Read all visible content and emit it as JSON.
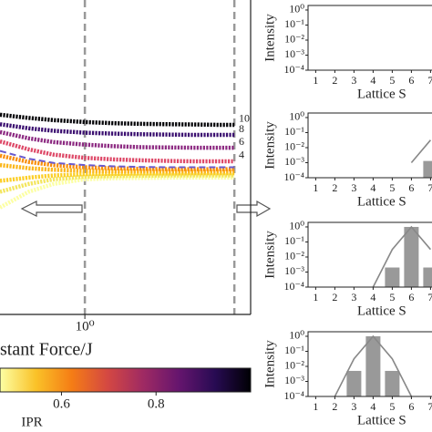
{
  "chart_data": [
    {
      "type": "line",
      "xlabel": "stant Force/J",
      "xscale": "log",
      "xlim": [
        0.25,
        15
      ],
      "xticks": [
        {
          "value": 1,
          "label": "10⁰"
        }
      ],
      "ylim": [
        0,
        10
      ],
      "vlines": [
        1,
        11.5
      ],
      "x": [
        0.25,
        0.4,
        0.6,
        1,
        1.6,
        2.5,
        4,
        6,
        9,
        11.5
      ],
      "series": [
        {
          "color": "#fcffa4",
          "values": [
            3.4,
            3.9,
            4.15,
            4.3,
            4.33,
            4.34,
            4.35,
            4.35,
            4.35,
            4.35
          ]
        },
        {
          "color": "#f3e55d",
          "values": [
            3.9,
            4.15,
            4.3,
            4.38,
            4.4,
            4.41,
            4.42,
            4.42,
            4.42,
            4.42
          ]
        },
        {
          "color": "#fcce25",
          "values": [
            4.25,
            4.35,
            4.42,
            4.46,
            4.47,
            4.48,
            4.48,
            4.49,
            4.49,
            4.49
          ]
        },
        {
          "color": "#fbb61a",
          "values": [
            4.75,
            4.65,
            4.6,
            4.57,
            4.56,
            4.56,
            4.55,
            4.55,
            4.55,
            4.55
          ]
        },
        {
          "color": "#f98e09",
          "values": [
            5.05,
            4.85,
            4.75,
            4.68,
            4.65,
            4.63,
            4.62,
            4.62,
            4.62,
            4.62
          ]
        },
        {
          "color": "#6a5acd",
          "dashed": true,
          "values": [
            5.2,
            4.95,
            4.82,
            4.75,
            4.71,
            4.69,
            4.68,
            4.68,
            4.68,
            4.68
          ]
        },
        {
          "name": "4",
          "color": "#de4968",
          "values": [
            5.5,
            5.25,
            5.08,
            4.98,
            4.93,
            4.9,
            4.88,
            4.87,
            4.87,
            4.87
          ]
        },
        {
          "name": "6",
          "color": "#8c2981",
          "values": [
            5.8,
            5.6,
            5.48,
            5.4,
            5.35,
            5.32,
            5.31,
            5.3,
            5.3,
            5.3
          ]
        },
        {
          "name": "8",
          "color": "#3b0f70",
          "values": [
            6.05,
            5.92,
            5.84,
            5.78,
            5.75,
            5.73,
            5.72,
            5.71,
            5.71,
            5.71
          ]
        },
        {
          "name": "10",
          "color": "#000004",
          "values": [
            6.35,
            6.25,
            6.18,
            6.12,
            6.08,
            6.06,
            6.05,
            6.04,
            6.03,
            6.03
          ]
        }
      ],
      "colorbar": {
        "label": "IPR",
        "colormap": "inferno",
        "lim": [
          0.47,
          1.0
        ],
        "ticks": [
          0.6,
          0.8
        ]
      }
    },
    {
      "type": "bar",
      "ylabel": "Intensity",
      "xlabel": "Lattice S",
      "yscale": "log",
      "categories": [
        1,
        2,
        3,
        4,
        5,
        6,
        7
      ],
      "xlim": [
        0.6,
        7.7
      ],
      "values": [
        null,
        null,
        null,
        null,
        null,
        null,
        null
      ],
      "ylim": [
        0.0001,
        2
      ],
      "yticks": [
        {
          "value": 1,
          "label": "10⁰"
        },
        {
          "value": 0.1,
          "label": "10⁻¹"
        },
        {
          "value": 0.01,
          "label": "10⁻²"
        },
        {
          "value": 0.001,
          "label": "10⁻³"
        },
        {
          "value": 0.0001,
          "label": "10⁻⁴"
        }
      ],
      "color": "#999999"
    },
    {
      "type": "bar",
      "ylabel": "Intensity",
      "xlabel": "Lattice S",
      "yscale": "log",
      "categories": [
        1,
        2,
        3,
        4,
        5,
        6,
        7
      ],
      "xlim": [
        0.6,
        7.7
      ],
      "values": [
        null,
        null,
        null,
        null,
        null,
        null,
        0.0013
      ],
      "fit": [
        null,
        null,
        null,
        null,
        null,
        0.001,
        0.0316
      ],
      "ylim": [
        0.0001,
        2
      ],
      "yticks": [
        {
          "value": 1,
          "label": "10⁰"
        },
        {
          "value": 0.1,
          "label": "10⁻¹"
        },
        {
          "value": 0.01,
          "label": "10⁻²"
        },
        {
          "value": 0.001,
          "label": "10⁻³"
        },
        {
          "value": 0.0001,
          "label": "10⁻⁴"
        }
      ],
      "color": "#999999"
    },
    {
      "type": "bar",
      "ylabel": "Intensity",
      "xlabel": "Lattice S",
      "yscale": "log",
      "categories": [
        1,
        2,
        3,
        4,
        5,
        6,
        7
      ],
      "xlim": [
        0.6,
        7.7
      ],
      "values": [
        null,
        null,
        null,
        null,
        0.002,
        1,
        0.002
      ],
      "fit": [
        null,
        null,
        null,
        0.0001,
        0.0316,
        1,
        0.0316
      ],
      "ylim": [
        0.0001,
        2
      ],
      "yticks": [
        {
          "value": 1,
          "label": "10⁰"
        },
        {
          "value": 0.1,
          "label": "10⁻¹"
        },
        {
          "value": 0.01,
          "label": "10⁻²"
        },
        {
          "value": 0.001,
          "label": "10⁻³"
        },
        {
          "value": 0.0001,
          "label": "10⁻⁴"
        }
      ],
      "color": "#999999"
    },
    {
      "type": "bar",
      "ylabel": "Intensity",
      "xlabel": "Lattice S",
      "yscale": "log",
      "categories": [
        1,
        2,
        3,
        4,
        5,
        6,
        7
      ],
      "xlim": [
        0.6,
        7.7
      ],
      "values": [
        null,
        null,
        0.005,
        1,
        0.005,
        null,
        null
      ],
      "fit": [
        null,
        0.0001,
        0.0316,
        1,
        0.0316,
        0.0001,
        null
      ],
      "ylim": [
        0.0001,
        2
      ],
      "yticks": [
        {
          "value": 1,
          "label": "10⁰"
        },
        {
          "value": 0.1,
          "label": "10⁻¹"
        },
        {
          "value": 0.01,
          "label": "10⁻²"
        },
        {
          "value": 0.001,
          "label": "10⁻³"
        },
        {
          "value": 0.0001,
          "label": "10⁻⁴"
        }
      ],
      "color": "#999999"
    }
  ]
}
